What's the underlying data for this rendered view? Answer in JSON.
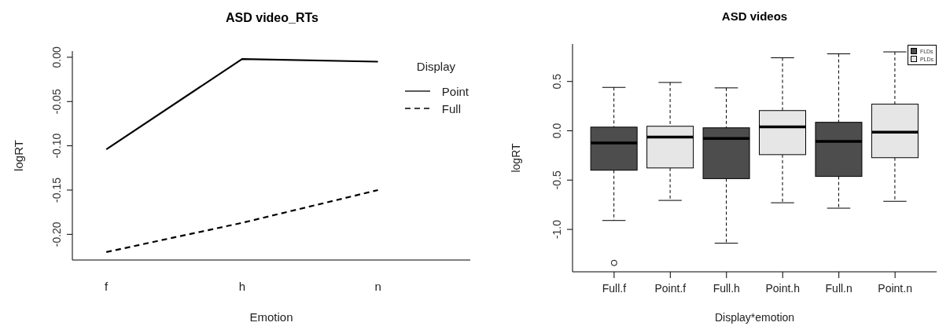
{
  "chart_data": [
    {
      "type": "line",
      "title": "ASD video_RTs",
      "xlabel": "Emotion",
      "ylabel": "logRT",
      "legend_title": "Display",
      "categories": [
        "f",
        "h",
        "n"
      ],
      "series": [
        {
          "name": "Point",
          "color": "#000000",
          "line_style": "solid",
          "values": [
            -0.104,
            -0.002,
            -0.005
          ]
        },
        {
          "name": "Full",
          "color": "#000000",
          "line_style": "dashed",
          "values": [
            -0.22,
            -0.187,
            -0.15
          ]
        }
      ],
      "ylim": [
        -0.229,
        0.007
      ],
      "yticks": [
        {
          "value": -0.2,
          "label": "-0.20"
        },
        {
          "value": -0.15,
          "label": "-0.15"
        },
        {
          "value": -0.1,
          "label": "-0.10"
        },
        {
          "value": -0.05,
          "label": "-0.05"
        },
        {
          "value": 0,
          "label": "0.00"
        }
      ],
      "legend": "top right",
      "grid": false
    },
    {
      "type": "box",
      "title": "ASD videos",
      "xlabel": "Display*emotion",
      "ylabel": "logRT",
      "categories": [
        "Full.f",
        "Point.f",
        "Full.h",
        "Point.h",
        "Full.n",
        "Point.n"
      ],
      "series": [
        {
          "name": "FLDs",
          "color": "#4d4d4d",
          "boxes": [
            {
              "low": -0.91,
              "q1": -0.4,
              "median": -0.123,
              "q3": 0.037,
              "high": 0.44,
              "outliers": [
                -1.34
              ]
            },
            null,
            {
              "low": -1.14,
              "q1": -0.485,
              "median": -0.077,
              "q3": 0.03,
              "high": 0.435
            },
            null,
            {
              "low": -0.785,
              "q1": -0.463,
              "median": -0.107,
              "q3": 0.086,
              "high": 0.78
            },
            null
          ]
        },
        {
          "name": "PLDs",
          "color": "#e6e6e6",
          "boxes": [
            null,
            {
              "low": -0.706,
              "q1": -0.377,
              "median": -0.064,
              "q3": 0.046,
              "high": 0.49
            },
            null,
            {
              "low": -0.73,
              "q1": -0.242,
              "median": 0.04,
              "q3": 0.205,
              "high": 0.74
            },
            null,
            {
              "low": -0.715,
              "q1": -0.273,
              "median": -0.015,
              "q3": 0.27,
              "high": 0.8
            }
          ]
        }
      ],
      "ylim": [
        -1.43,
        0.88
      ],
      "yticks": [
        {
          "value": -1,
          "label": "-1.0"
        },
        {
          "value": -0.5,
          "label": "-0.5"
        },
        {
          "value": 0,
          "label": "0.0"
        },
        {
          "value": 0.5,
          "label": "0.5"
        }
      ],
      "legend": "top right",
      "grid": false
    }
  ]
}
